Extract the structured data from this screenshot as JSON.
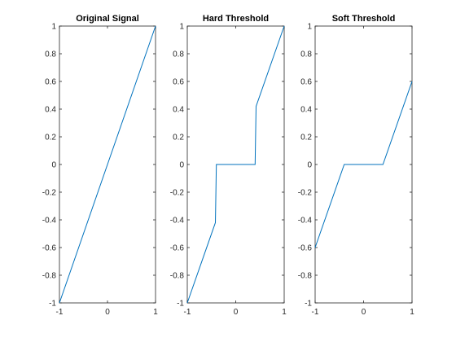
{
  "chart_data": [
    {
      "type": "line",
      "title": "Original Signal",
      "xlim": [
        -1,
        1
      ],
      "ylim": [
        -1,
        1
      ],
      "xticks": [
        "-1",
        "0",
        "1"
      ],
      "yticks": [
        "-1",
        "-0.8",
        "-0.6",
        "-0.4",
        "-0.2",
        "0",
        "0.2",
        "0.4",
        "0.6",
        "0.8",
        "1"
      ],
      "grid": false,
      "color": "#0072BD",
      "points": [
        [
          -1,
          -1
        ],
        [
          1,
          1
        ]
      ]
    },
    {
      "type": "line",
      "title": "Hard Threshold",
      "xlim": [
        -1,
        1
      ],
      "ylim": [
        -1,
        1
      ],
      "xticks": [
        "-1",
        "0",
        "1"
      ],
      "yticks": [
        "-1",
        "-0.8",
        "-0.6",
        "-0.4",
        "-0.2",
        "0",
        "0.2",
        "0.4",
        "0.6",
        "0.8",
        "1"
      ],
      "grid": false,
      "color": "#0072BD",
      "points": [
        [
          -1,
          -1
        ],
        [
          -0.42,
          -0.42
        ],
        [
          -0.4,
          0
        ],
        [
          0.4,
          0
        ],
        [
          0.42,
          0.42
        ],
        [
          1,
          1
        ]
      ]
    },
    {
      "type": "line",
      "title": "Soft Threshold",
      "xlim": [
        -1,
        1
      ],
      "ylim": [
        -1,
        1
      ],
      "xticks": [
        "-1",
        "0",
        "1"
      ],
      "yticks": [
        "-1",
        "-0.8",
        "-0.6",
        "-0.4",
        "-0.2",
        "0",
        "0.2",
        "0.4",
        "0.6",
        "0.8",
        "1"
      ],
      "grid": false,
      "color": "#0072BD",
      "points": [
        [
          -1,
          -0.6
        ],
        [
          -0.4,
          0
        ],
        [
          0.4,
          0
        ],
        [
          1,
          0.6
        ]
      ]
    }
  ]
}
